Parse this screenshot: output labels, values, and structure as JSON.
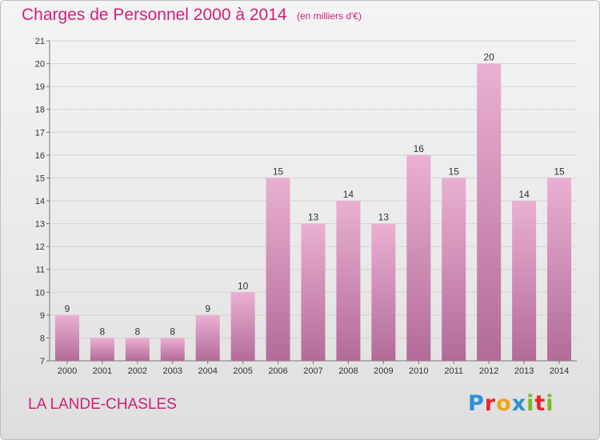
{
  "header": {
    "title": "Charges de Personnel 2000 à 2014",
    "subtitle": "(en milliers d'€)"
  },
  "footer": {
    "place": "LA LANDE-CHASLES",
    "logo_text": "Proxiti"
  },
  "colors": {
    "accent": "#d01f7a",
    "bar_light": "#eab0d2",
    "bar_dark": "#b36b98",
    "logo_p": "#2d8fd5",
    "logo_r": "#e8272e",
    "logo_o": "#f2a51a",
    "logo_x": "#2d8fd5",
    "logo_i": "#7ab929",
    "logo_t": "#e8272e"
  },
  "chart_data": {
    "type": "bar",
    "categories": [
      "2000",
      "2001",
      "2002",
      "2003",
      "2004",
      "2005",
      "2006",
      "2007",
      "2008",
      "2009",
      "2010",
      "2011",
      "2012",
      "2013",
      "2014"
    ],
    "values": [
      9,
      8,
      8,
      8,
      9,
      10,
      15,
      13,
      14,
      13,
      16,
      15,
      20,
      14,
      15
    ],
    "ylim": [
      7,
      21
    ],
    "yticks": [
      7,
      8,
      9,
      10,
      11,
      12,
      13,
      14,
      15,
      16,
      17,
      18,
      19,
      20,
      21
    ],
    "grid": true,
    "title": "Charges de Personnel 2000 à 2014"
  }
}
